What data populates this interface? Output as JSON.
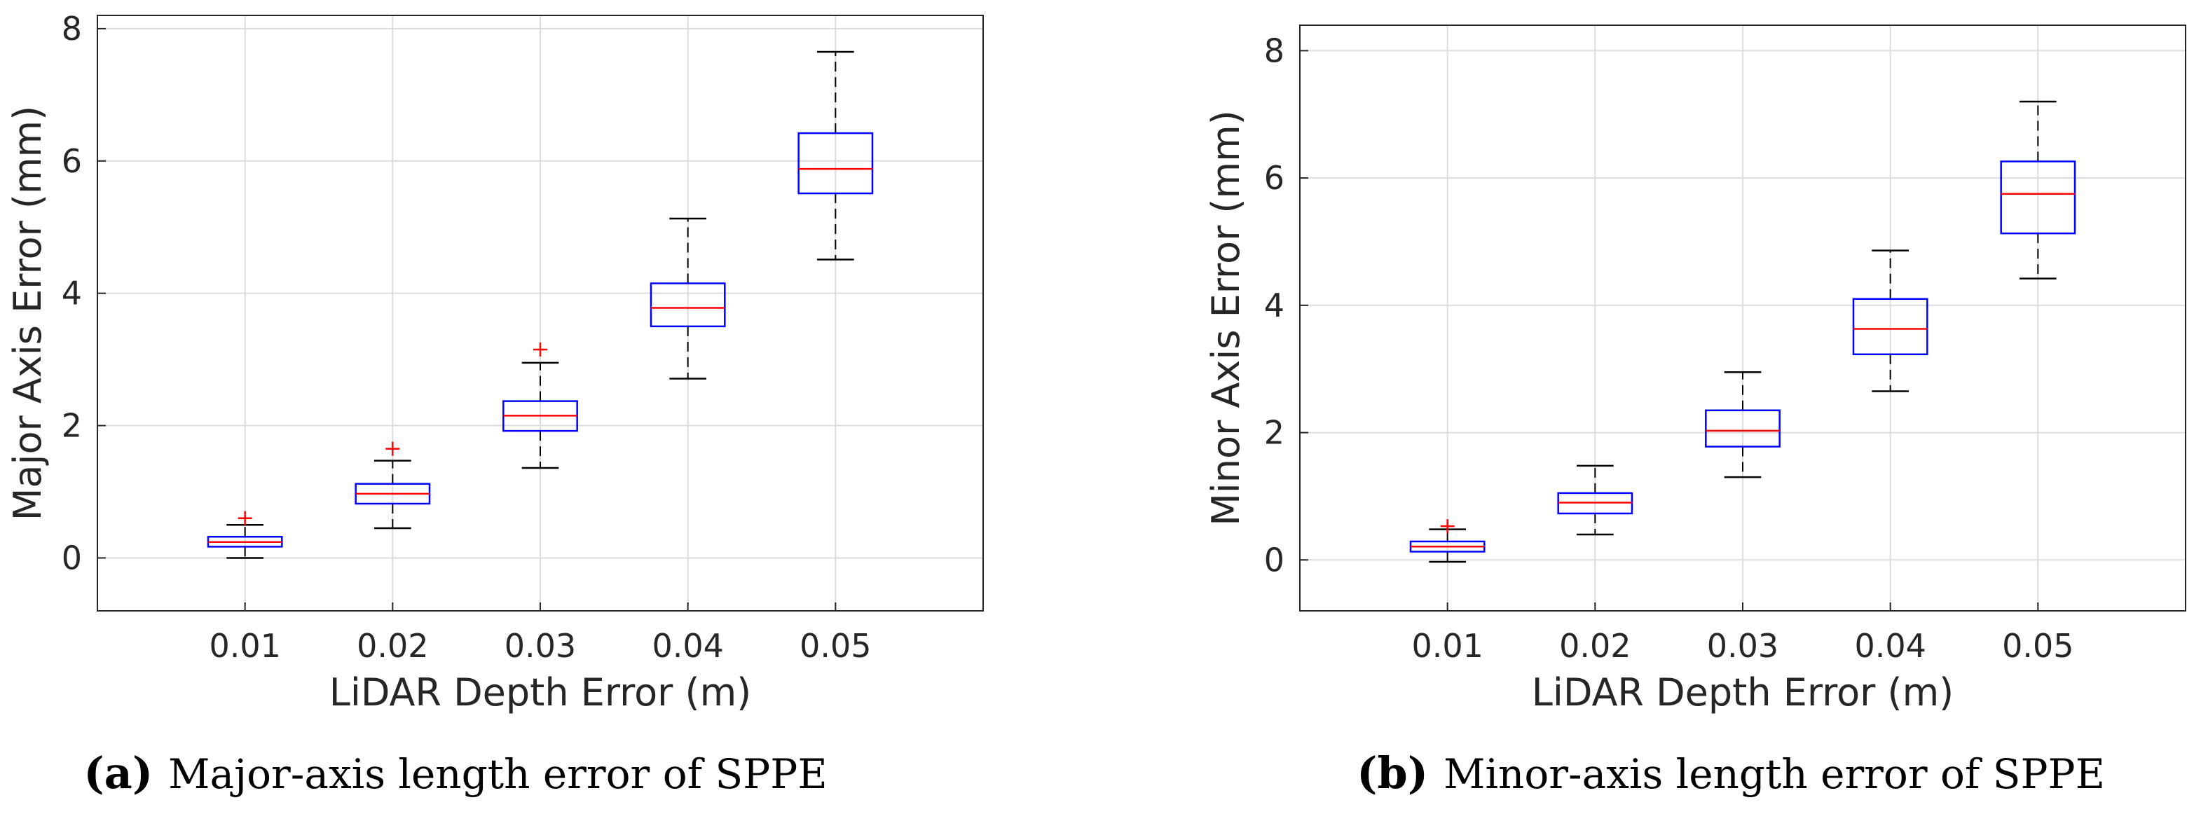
{
  "colors": {
    "box": "#0000ff",
    "median": "#ff0000",
    "whisker": "#000000",
    "outlier": "#ff0000",
    "grid": "#dcdcdc",
    "axes": "#262626"
  },
  "chart_data": [
    {
      "type": "boxplot",
      "panel": "a",
      "caption_letter": "(a)",
      "caption": "Major-axis length error of SPPE",
      "xlabel": "LiDAR Depth Error (m)",
      "ylabel": "Major Axis Error (mm)",
      "categories": [
        "0.01",
        "0.02",
        "0.03",
        "0.04",
        "0.05"
      ],
      "xlim": [
        0,
        6
      ],
      "ylim": [
        -0.8,
        8.4
      ],
      "yticks": [
        0,
        2,
        4,
        6,
        8
      ],
      "grid": true,
      "boxes": [
        {
          "whisker_low": 0.0,
          "q1": 0.17,
          "median": 0.24,
          "q3": 0.32,
          "whisker_high": 0.5,
          "outliers": [
            0.6
          ]
        },
        {
          "whisker_low": 0.45,
          "q1": 0.82,
          "median": 0.97,
          "q3": 1.12,
          "whisker_high": 1.47,
          "outliers": [
            1.65
          ]
        },
        {
          "whisker_low": 1.36,
          "q1": 1.92,
          "median": 2.15,
          "q3": 2.37,
          "whisker_high": 2.95,
          "outliers": [
            3.15
          ]
        },
        {
          "whisker_low": 2.71,
          "q1": 3.5,
          "median": 3.78,
          "q3": 4.15,
          "whisker_high": 5.13,
          "outliers": []
        },
        {
          "whisker_low": 4.51,
          "q1": 5.51,
          "median": 5.88,
          "q3": 6.42,
          "whisker_high": 7.65,
          "outliers": []
        }
      ]
    },
    {
      "type": "boxplot",
      "panel": "b",
      "caption_letter": "(b)",
      "caption": "Minor-axis length error of SPPE",
      "xlabel": "LiDAR Depth Error (m)",
      "ylabel": "Minor Axis Error (mm)",
      "categories": [
        "0.01",
        "0.02",
        "0.03",
        "0.04",
        "0.05"
      ],
      "xlim": [
        0,
        6
      ],
      "ylim": [
        -0.8,
        8.4
      ],
      "yticks": [
        0,
        2,
        4,
        6,
        8
      ],
      "grid": true,
      "boxes": [
        {
          "whisker_low": -0.03,
          "q1": 0.13,
          "median": 0.21,
          "q3": 0.29,
          "whisker_high": 0.48,
          "outliers": [
            0.53
          ]
        },
        {
          "whisker_low": 0.4,
          "q1": 0.73,
          "median": 0.9,
          "q3": 1.05,
          "whisker_high": 1.48,
          "outliers": []
        },
        {
          "whisker_low": 1.3,
          "q1": 1.78,
          "median": 2.03,
          "q3": 2.35,
          "whisker_high": 2.95,
          "outliers": []
        },
        {
          "whisker_low": 2.65,
          "q1": 3.23,
          "median": 3.63,
          "q3": 4.1,
          "whisker_high": 4.86,
          "outliers": []
        },
        {
          "whisker_low": 4.42,
          "q1": 5.13,
          "median": 5.75,
          "q3": 6.26,
          "whisker_high": 7.2,
          "outliers": []
        }
      ]
    }
  ]
}
